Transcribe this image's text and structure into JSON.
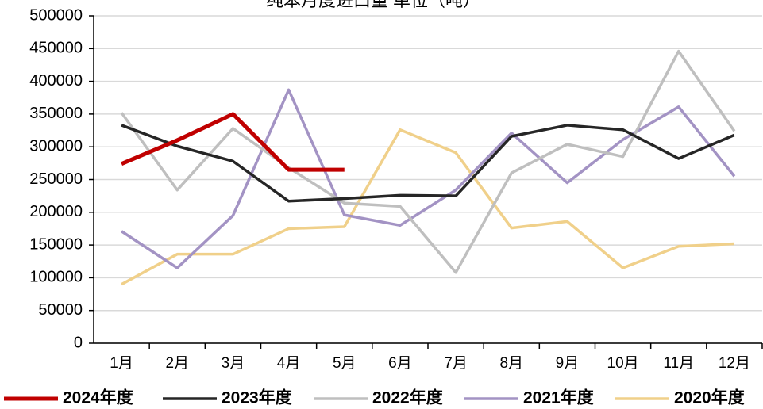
{
  "chart_data": {
    "type": "line",
    "title": "纯苯月度进口量 单位（吨）",
    "categories": [
      "1月",
      "2月",
      "3月",
      "4月",
      "5月",
      "6月",
      "7月",
      "8月",
      "9月",
      "10月",
      "11月",
      "12月"
    ],
    "series": [
      {
        "name": "2024年度",
        "color": "#c00000",
        "values": [
          274000,
          310000,
          350000,
          265000,
          265000,
          null,
          null,
          null,
          null,
          null,
          null,
          null
        ]
      },
      {
        "name": "2023年度",
        "color": "#262626",
        "values": [
          333000,
          301000,
          278000,
          217000,
          221000,
          226000,
          225000,
          316000,
          333000,
          326000,
          282000,
          318000
        ]
      },
      {
        "name": "2022年度",
        "color": "#bfbfbf",
        "values": [
          352000,
          234000,
          328000,
          268000,
          214000,
          209000,
          108000,
          260000,
          304000,
          285000,
          446000,
          324000
        ]
      },
      {
        "name": "2021年度",
        "color": "#a393c4",
        "values": [
          171000,
          115000,
          195000,
          387000,
          196000,
          180000,
          234000,
          321000,
          245000,
          311000,
          361000,
          255000
        ]
      },
      {
        "name": "2020年度",
        "color": "#f0d08a",
        "values": [
          90000,
          136000,
          136000,
          175000,
          178000,
          326000,
          291000,
          176000,
          186000,
          115000,
          148000,
          152000
        ]
      }
    ],
    "ylim": [
      0,
      500000
    ],
    "yticks": [
      0,
      50000,
      100000,
      150000,
      200000,
      250000,
      300000,
      350000,
      400000,
      450000,
      500000
    ],
    "grid": true,
    "legend": "bottom"
  }
}
